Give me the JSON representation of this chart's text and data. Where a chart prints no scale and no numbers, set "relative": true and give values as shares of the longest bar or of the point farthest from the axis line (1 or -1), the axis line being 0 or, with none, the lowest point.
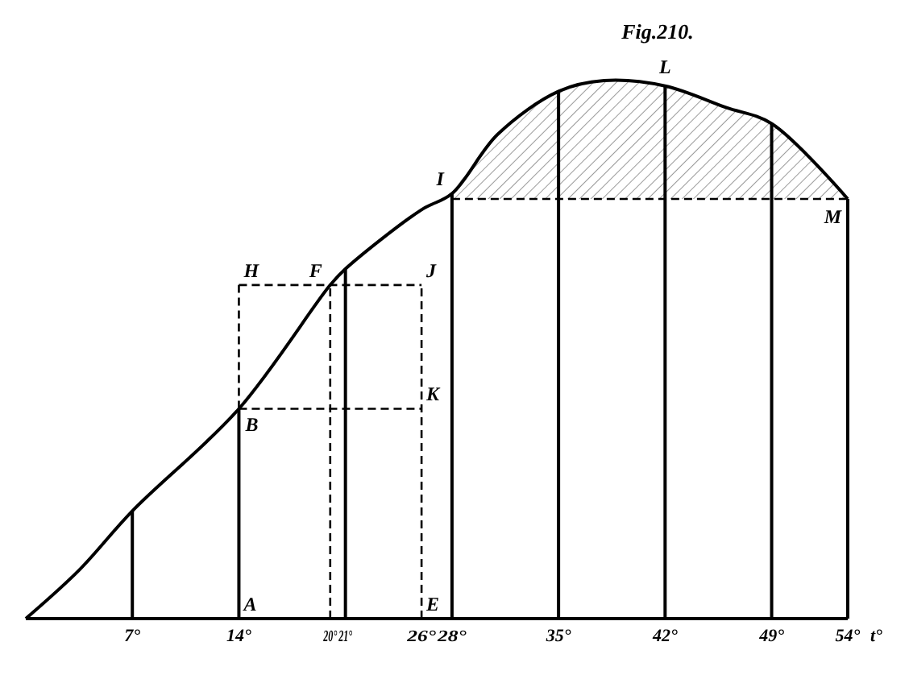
{
  "chart_data": {
    "type": "line",
    "title": "Fig.210.",
    "xlabel": "t°",
    "relative": true,
    "xlim": [
      0,
      54
    ],
    "xticks": [
      {
        "value": 7,
        "label": "7°"
      },
      {
        "value": 14,
        "label": "14°"
      },
      {
        "value": 20,
        "label": "20°"
      },
      {
        "value": 21,
        "label": "21°"
      },
      {
        "value": 26,
        "label": "26°"
      },
      {
        "value": 28,
        "label": "28°"
      },
      {
        "value": 35,
        "label": "35°"
      },
      {
        "value": 42,
        "label": "42°"
      },
      {
        "value": 49,
        "label": "49°"
      },
      {
        "value": 54,
        "label": "54°"
      }
    ],
    "marker": "none",
    "line_style": "solid",
    "series": [
      {
        "color": "#000000",
        "line_style": "dashed",
        "x": [
          28,
          54
        ],
        "values": [
          0.78,
          0.78
        ]
      },
      {
        "color": "#000000",
        "x": [
          0,
          3.5,
          7,
          14,
          20,
          21,
          26,
          28,
          31,
          35,
          38,
          42,
          46,
          49,
          54
        ],
        "values": [
          0,
          0.09,
          0.2,
          0.39,
          0.62,
          0.65,
          0.76,
          0.79,
          0.9,
          0.98,
          1,
          0.99,
          0.95,
          0.92,
          0.78
        ]
      },
      {
        "color": "#000000",
        "x": [
          7,
          7
        ],
        "values": [
          0,
          0.2
        ]
      },
      {
        "color": "#000000",
        "x": [
          14,
          14
        ],
        "values": [
          0,
          0.39
        ]
      },
      {
        "color": "#000000",
        "x": [
          21,
          21
        ],
        "values": [
          0,
          0.65
        ]
      },
      {
        "color": "#000000",
        "x": [
          28,
          28
        ],
        "values": [
          0,
          0.79
        ]
      },
      {
        "color": "#000000",
        "x": [
          35,
          35
        ],
        "values": [
          0,
          0.98
        ]
      },
      {
        "color": "#000000",
        "x": [
          42,
          42
        ],
        "values": [
          0,
          0.99
        ]
      },
      {
        "color": "#000000",
        "x": [
          49,
          49
        ],
        "values": [
          0,
          0.92
        ]
      },
      {
        "color": "#000000",
        "x": [
          54,
          54
        ],
        "values": [
          0,
          0.78
        ]
      },
      {
        "color": "#000000",
        "line_style": "dashed",
        "x": [
          20,
          20
        ],
        "values": [
          0,
          0.62
        ]
      },
      {
        "color": "#000000",
        "line_style": "dashed",
        "x": [
          26,
          26
        ],
        "values": [
          0,
          0.62
        ]
      },
      {
        "color": "#000000",
        "line_style": "dashed",
        "x": [
          14,
          26
        ],
        "values": [
          0.62,
          0.62
        ]
      },
      {
        "color": "#000000",
        "line_style": "dashed",
        "x": [
          14,
          26
        ],
        "values": [
          0.39,
          0.39
        ]
      },
      {
        "color": "#000000",
        "line_style": "dashed",
        "x": [
          14,
          14
        ],
        "values": [
          0.39,
          0.62
        ]
      }
    ],
    "annotations": [
      {
        "text": "A",
        "x": 14,
        "y": 0
      },
      {
        "text": "B",
        "x": 14,
        "y": 0.39
      },
      {
        "text": "H",
        "x": 14,
        "y": 0.62
      },
      {
        "text": "F",
        "x": 20,
        "y": 0.62
      },
      {
        "text": "J",
        "x": 26,
        "y": 0.62
      },
      {
        "text": "K",
        "x": 26,
        "y": 0.39
      },
      {
        "text": "E",
        "x": 26,
        "y": 0
      },
      {
        "text": "I",
        "x": 28,
        "y": 0.79
      },
      {
        "text": "L",
        "x": 42,
        "y": 0.99
      },
      {
        "text": "M",
        "x": 54,
        "y": 0.78
      }
    ]
  }
}
